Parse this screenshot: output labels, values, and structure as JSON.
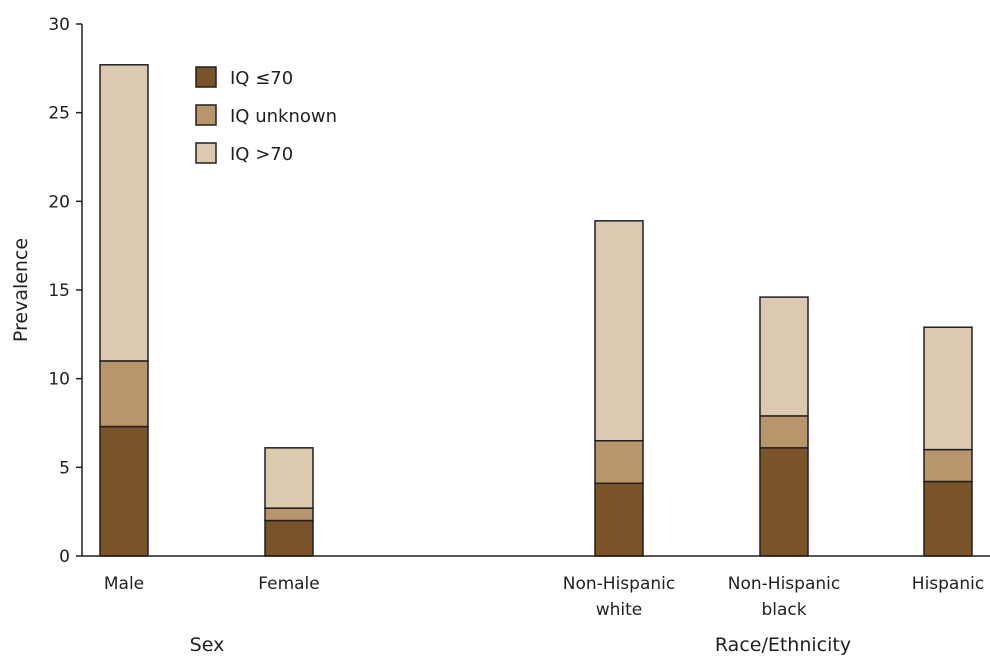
{
  "chart_data": {
    "type": "bar",
    "stacked": true,
    "ylabel": "Prevalence",
    "ylim": [
      0,
      30
    ],
    "yticks": [
      0,
      5,
      10,
      15,
      20,
      25,
      30
    ],
    "grid": false,
    "legend_position": "top-left",
    "categories": [
      {
        "lines": [
          "Male"
        ]
      },
      {
        "lines": [
          "Female"
        ]
      },
      {
        "lines": [
          "Non-Hispanic",
          "white"
        ]
      },
      {
        "lines": [
          "Non-Hispanic",
          "black"
        ]
      },
      {
        "lines": [
          "Hispanic"
        ]
      }
    ],
    "groups": [
      {
        "label": "Sex"
      },
      {
        "label": "Race/Ethnicity"
      }
    ],
    "series": [
      {
        "name": "IQ ≤70",
        "color": "#7a5428",
        "values": [
          7.3,
          2.0,
          4.1,
          6.1,
          4.2
        ]
      },
      {
        "name": "IQ unknown",
        "color": "#b8956a",
        "values": [
          3.7,
          0.7,
          2.4,
          1.8,
          1.8
        ]
      },
      {
        "name": "IQ >70",
        "color": "#dbc9b0",
        "values": [
          16.7,
          3.4,
          12.4,
          6.7,
          6.9
        ]
      }
    ]
  }
}
